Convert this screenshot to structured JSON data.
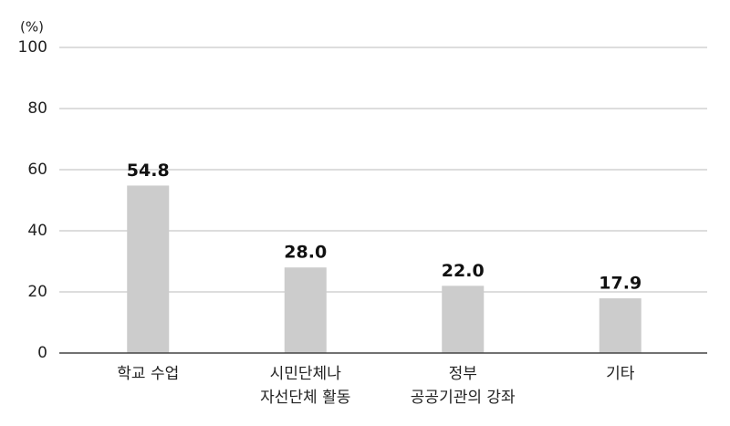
{
  "chart_data": {
    "type": "bar",
    "y_label": "(%)",
    "categories": [
      [
        "학교 수업"
      ],
      [
        "시민단체나",
        "자선단체 활동"
      ],
      [
        "정부",
        "공공기관의 강좌"
      ],
      [
        "기타"
      ]
    ],
    "values": [
      54.8,
      28.0,
      22.0,
      17.9
    ],
    "value_labels": [
      "54.8",
      "28.0",
      "22.0",
      "17.9"
    ],
    "color": "#cccccc",
    "ylim": [
      0,
      100
    ],
    "yticks": [
      0,
      20,
      40,
      60,
      80,
      100
    ],
    "grid": true
  }
}
